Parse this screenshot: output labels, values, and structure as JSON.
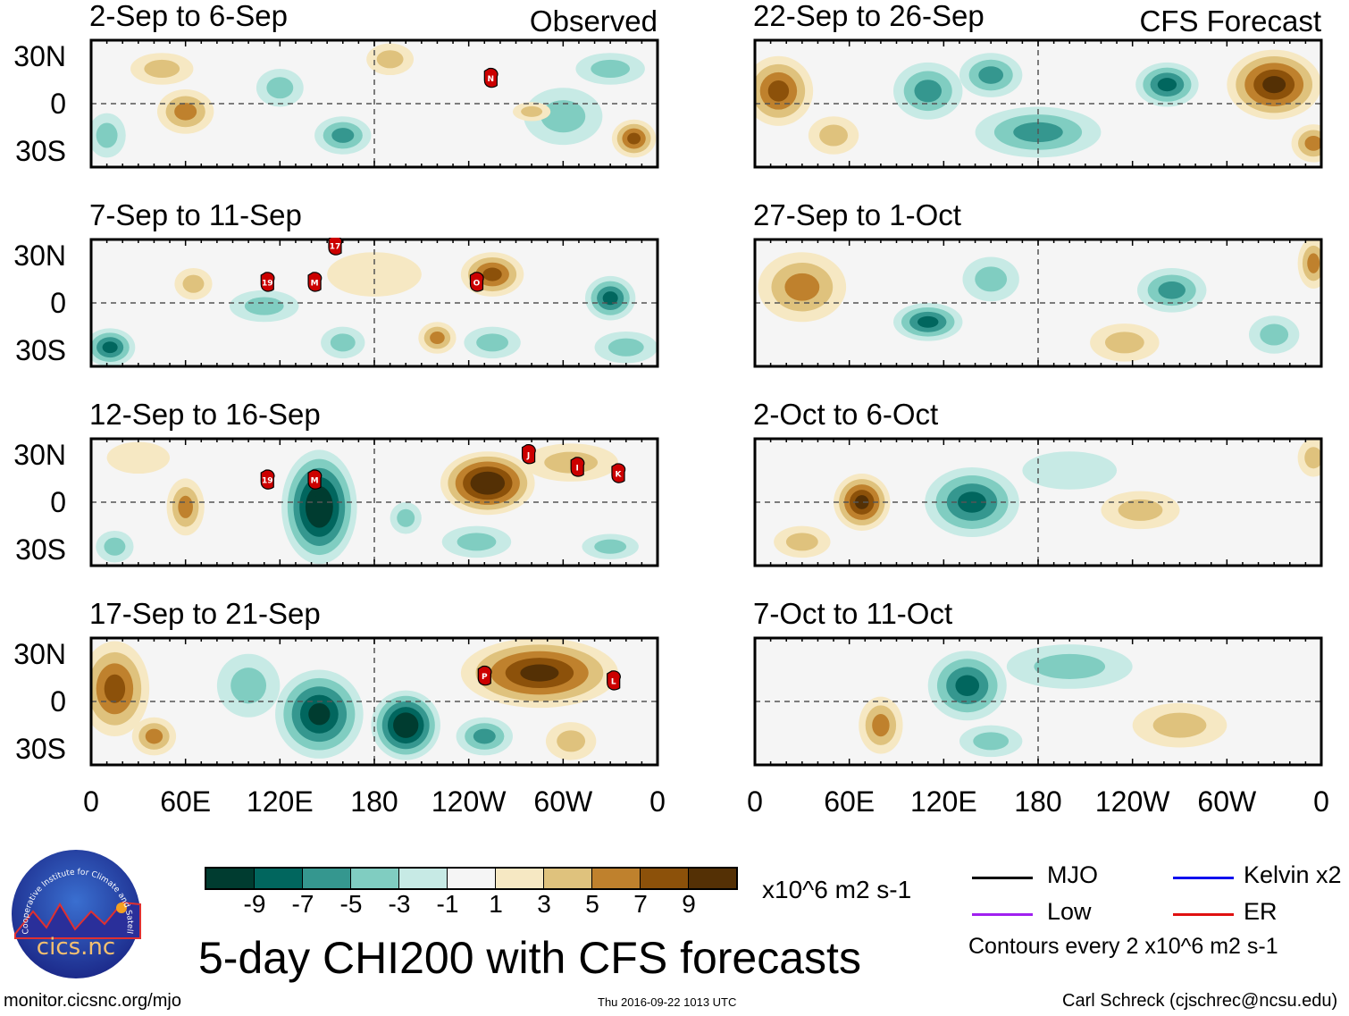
{
  "panels": [
    {
      "title": "2-Sep to 6-Sep",
      "tag": "Observed",
      "blobs": [
        {
          "lon": 60,
          "lat": -5,
          "rx": 18,
          "ry": 14,
          "v": 4
        },
        {
          "lon": 45,
          "lat": 22,
          "rx": 20,
          "ry": 10,
          "v": 2
        },
        {
          "lon": 190,
          "lat": 28,
          "rx": 15,
          "ry": 10,
          "v": 2
        },
        {
          "lon": 160,
          "lat": -20,
          "rx": 18,
          "ry": 12,
          "v": -4
        },
        {
          "lon": 300,
          "lat": -8,
          "rx": 25,
          "ry": 18,
          "v": -3
        },
        {
          "lon": 345,
          "lat": -22,
          "rx": 14,
          "ry": 12,
          "v": 7
        },
        {
          "lon": 330,
          "lat": 22,
          "rx": 22,
          "ry": 10,
          "v": -2
        },
        {
          "lon": 10,
          "lat": -20,
          "rx": 12,
          "ry": 14,
          "v": -2
        },
        {
          "lon": 120,
          "lat": 10,
          "rx": 15,
          "ry": 12,
          "v": -2
        },
        {
          "lon": 280,
          "lat": -5,
          "rx": 12,
          "ry": 6,
          "v": 2
        }
      ],
      "storms": [
        {
          "id": "N",
          "lon": 254,
          "lat": 16
        }
      ]
    },
    {
      "title": "7-Sep to 11-Sep",
      "tag": "",
      "blobs": [
        {
          "lon": 255,
          "lat": 18,
          "rx": 20,
          "ry": 14,
          "v": 6
        },
        {
          "lon": 330,
          "lat": 3,
          "rx": 16,
          "ry": 14,
          "v": -6
        },
        {
          "lon": 12,
          "lat": -28,
          "rx": 16,
          "ry": 12,
          "v": -6
        },
        {
          "lon": 110,
          "lat": -2,
          "rx": 22,
          "ry": 10,
          "v": -3
        },
        {
          "lon": 220,
          "lat": -22,
          "rx": 12,
          "ry": 10,
          "v": 4
        },
        {
          "lon": 255,
          "lat": -25,
          "rx": 18,
          "ry": 10,
          "v": -3
        },
        {
          "lon": 65,
          "lat": 12,
          "rx": 12,
          "ry": 10,
          "v": 2
        },
        {
          "lon": 180,
          "lat": 18,
          "rx": 30,
          "ry": 14,
          "v": 1
        },
        {
          "lon": 160,
          "lat": -25,
          "rx": 14,
          "ry": 10,
          "v": -3
        },
        {
          "lon": 340,
          "lat": -28,
          "rx": 20,
          "ry": 10,
          "v": -2
        }
      ],
      "storms": [
        {
          "id": "17",
          "lon": 155,
          "lat": 36
        },
        {
          "id": "19",
          "lon": 112,
          "lat": 13
        },
        {
          "id": "M",
          "lon": 142,
          "lat": 13
        },
        {
          "id": "O",
          "lon": 245,
          "lat": 13
        }
      ]
    },
    {
      "title": "12-Sep to 16-Sep",
      "tag": "",
      "blobs": [
        {
          "lon": 145,
          "lat": -3,
          "rx": 24,
          "ry": 36,
          "v": -10
        },
        {
          "lon": 252,
          "lat": 12,
          "rx": 30,
          "ry": 20,
          "v": 10
        },
        {
          "lon": 305,
          "lat": 25,
          "rx": 30,
          "ry": 12,
          "v": 3
        },
        {
          "lon": 60,
          "lat": -3,
          "rx": 12,
          "ry": 18,
          "v": 4
        },
        {
          "lon": 245,
          "lat": -25,
          "rx": 22,
          "ry": 10,
          "v": -3
        },
        {
          "lon": 200,
          "lat": -10,
          "rx": 10,
          "ry": 10,
          "v": -3
        },
        {
          "lon": 15,
          "lat": -28,
          "rx": 12,
          "ry": 10,
          "v": -3
        },
        {
          "lon": 330,
          "lat": -28,
          "rx": 18,
          "ry": 8,
          "v": -3
        },
        {
          "lon": 30,
          "lat": 28,
          "rx": 20,
          "ry": 10,
          "v": 1
        }
      ],
      "storms": [
        {
          "id": "19",
          "lon": 112,
          "lat": 14
        },
        {
          "id": "M",
          "lon": 142,
          "lat": 14
        },
        {
          "id": "J",
          "lon": 278,
          "lat": 30
        },
        {
          "id": "I",
          "lon": 309,
          "lat": 22
        },
        {
          "id": "K",
          "lon": 335,
          "lat": 18
        }
      ]
    },
    {
      "title": "17-Sep to 21-Sep",
      "tag": "",
      "blobs": [
        {
          "lon": 15,
          "lat": 8,
          "rx": 22,
          "ry": 30,
          "v": 6
        },
        {
          "lon": 285,
          "lat": 18,
          "rx": 50,
          "ry": 22,
          "v": 9
        },
        {
          "lon": 145,
          "lat": -8,
          "rx": 28,
          "ry": 28,
          "v": -9
        },
        {
          "lon": 200,
          "lat": -15,
          "rx": 22,
          "ry": 22,
          "v": -10
        },
        {
          "lon": 250,
          "lat": -22,
          "rx": 18,
          "ry": 12,
          "v": -4
        },
        {
          "lon": 40,
          "lat": -22,
          "rx": 14,
          "ry": 12,
          "v": 4
        },
        {
          "lon": 100,
          "lat": 10,
          "rx": 20,
          "ry": 20,
          "v": -3
        },
        {
          "lon": 305,
          "lat": -25,
          "rx": 16,
          "ry": 12,
          "v": 3
        }
      ],
      "storms": [
        {
          "id": "P",
          "lon": 250,
          "lat": 16
        },
        {
          "id": "L",
          "lon": 332,
          "lat": 13
        }
      ]
    },
    {
      "title": "22-Sep to 26-Sep",
      "tag": "CFS Forecast",
      "blobs": [
        {
          "lon": 15,
          "lat": 8,
          "rx": 22,
          "ry": 22,
          "v": 7
        },
        {
          "lon": 110,
          "lat": 8,
          "rx": 22,
          "ry": 18,
          "v": -5
        },
        {
          "lon": 180,
          "lat": -18,
          "rx": 40,
          "ry": 16,
          "v": -5
        },
        {
          "lon": 262,
          "lat": 12,
          "rx": 20,
          "ry": 14,
          "v": -6
        },
        {
          "lon": 330,
          "lat": 12,
          "rx": 30,
          "ry": 22,
          "v": 8
        },
        {
          "lon": 355,
          "lat": -25,
          "rx": 14,
          "ry": 12,
          "v": 4
        },
        {
          "lon": 150,
          "lat": 18,
          "rx": 20,
          "ry": 14,
          "v": -4
        },
        {
          "lon": 50,
          "lat": -20,
          "rx": 16,
          "ry": 12,
          "v": 3
        }
      ],
      "storms": []
    },
    {
      "title": "27-Sep to 1-Oct",
      "tag": "",
      "blobs": [
        {
          "lon": 30,
          "lat": 10,
          "rx": 28,
          "ry": 22,
          "v": 5
        },
        {
          "lon": 110,
          "lat": -12,
          "rx": 22,
          "ry": 12,
          "v": -6
        },
        {
          "lon": 265,
          "lat": 8,
          "rx": 22,
          "ry": 14,
          "v": -5
        },
        {
          "lon": 235,
          "lat": -25,
          "rx": 22,
          "ry": 12,
          "v": 3
        },
        {
          "lon": 355,
          "lat": 25,
          "rx": 10,
          "ry": 16,
          "v": 4
        },
        {
          "lon": 150,
          "lat": 15,
          "rx": 18,
          "ry": 14,
          "v": -2
        },
        {
          "lon": 330,
          "lat": -20,
          "rx": 16,
          "ry": 12,
          "v": -2
        }
      ],
      "storms": []
    },
    {
      "title": "2-Oct to 6-Oct",
      "tag": "",
      "blobs": [
        {
          "lon": 68,
          "lat": 0,
          "rx": 18,
          "ry": 18,
          "v": 8
        },
        {
          "lon": 138,
          "lat": 0,
          "rx": 30,
          "ry": 22,
          "v": -7
        },
        {
          "lon": 245,
          "lat": -5,
          "rx": 25,
          "ry": 12,
          "v": 2
        },
        {
          "lon": 355,
          "lat": 28,
          "rx": 10,
          "ry": 12,
          "v": 3
        },
        {
          "lon": 200,
          "lat": 20,
          "rx": 30,
          "ry": 12,
          "v": -1
        },
        {
          "lon": 30,
          "lat": -25,
          "rx": 18,
          "ry": 10,
          "v": 2
        }
      ],
      "storms": []
    },
    {
      "title": "7-Oct to 11-Oct",
      "tag": "",
      "blobs": [
        {
          "lon": 135,
          "lat": 10,
          "rx": 25,
          "ry": 22,
          "v": -7
        },
        {
          "lon": 80,
          "lat": -15,
          "rx": 14,
          "ry": 18,
          "v": 5
        },
        {
          "lon": 200,
          "lat": 22,
          "rx": 40,
          "ry": 14,
          "v": -2
        },
        {
          "lon": 270,
          "lat": -15,
          "rx": 30,
          "ry": 14,
          "v": 2
        },
        {
          "lon": 150,
          "lat": -25,
          "rx": 20,
          "ry": 10,
          "v": -2
        }
      ],
      "storms": []
    }
  ],
  "lat_labels": [
    "30N",
    "0",
    "30S"
  ],
  "lon_labels": [
    "0",
    "60E",
    "120E",
    "180",
    "120W",
    "60W",
    "0"
  ],
  "colorbar": {
    "colors": [
      "#003c30",
      "#01665e",
      "#35978f",
      "#80cdc1",
      "#c7eae5",
      "#f5f5f5",
      "#f6e8c3",
      "#dfc27d",
      "#bf812d",
      "#8c510a",
      "#543005"
    ],
    "labels": [
      "-9",
      "-7",
      "-5",
      "-3",
      "-1",
      "1",
      "3",
      "5",
      "7",
      "9"
    ],
    "units": "x10^6 m2 s-1"
  },
  "legend": {
    "items": [
      {
        "label": "MJO",
        "color": "#000000"
      },
      {
        "label": "Kelvin x2",
        "color": "#1010ee"
      },
      {
        "label": "Low",
        "color": "#a020f0"
      },
      {
        "label": "ER",
        "color": "#e01010"
      }
    ],
    "contours": "Contours every 2 x10^6 m2 s-1"
  },
  "title": "5-day CHI200 with CFS forecasts",
  "logo": {
    "text": "cics.nc",
    "ring": "Cooperative Institute for Climate and Satellites"
  },
  "footer": {
    "url": "monitor.cicsnc.org/mjo",
    "timestamp": "Thu 2016-09-22 1013 UTC",
    "author": "Carl Schreck (cjschrec@ncsu.edu)"
  }
}
